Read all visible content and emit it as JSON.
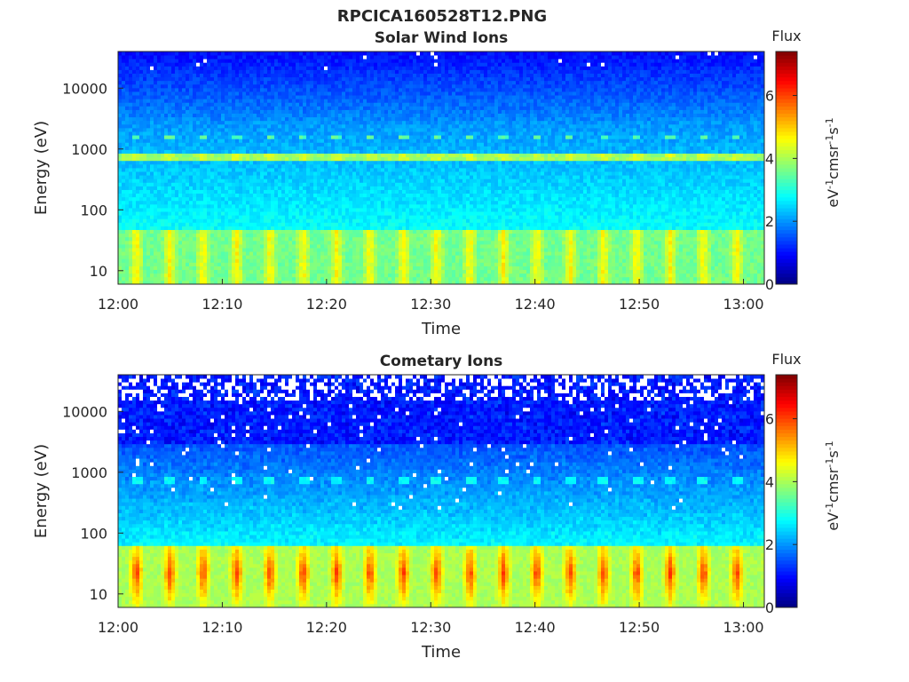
{
  "figure": {
    "title": "RPCICA160528T12.PNG"
  },
  "chart_data": [
    {
      "type": "heatmap",
      "title": "Solar Wind Ions",
      "xlabel": "Time",
      "ylabel": "Energy (eV)",
      "x_ticks": [
        "12:00",
        "12:10",
        "12:20",
        "12:30",
        "12:40",
        "12:50",
        "13:00"
      ],
      "x_range": [
        "12:00",
        "13:02"
      ],
      "y_scale": "log",
      "y_ticks": [
        10,
        100,
        1000,
        10000
      ],
      "y_range": [
        6,
        40000
      ],
      "colorbar": {
        "title": "Flux",
        "label": "eV-1cm-2sr-1s-1",
        "ticks": [
          0,
          2,
          4,
          6
        ],
        "range": [
          0,
          7.4
        ],
        "colormap": "jet"
      },
      "features": {
        "background_high_energy_flux": 1.0,
        "mid_energy_flux": 2.8,
        "band_750eV_flux": 3.9,
        "band_1600eV_flux": 3.4,
        "low_energy_flux": 3.6,
        "pulse_period_min": 3.2
      }
    },
    {
      "type": "heatmap",
      "title": "Cometary Ions",
      "xlabel": "Time",
      "ylabel": "Energy (eV)",
      "x_ticks": [
        "12:00",
        "12:10",
        "12:20",
        "12:30",
        "12:40",
        "12:50",
        "13:00"
      ],
      "x_range": [
        "12:00",
        "13:02"
      ],
      "y_scale": "log",
      "y_ticks": [
        10,
        100,
        1000,
        10000
      ],
      "y_range": [
        6,
        40000
      ],
      "colorbar": {
        "title": "Flux",
        "label": "eV-1cm-2sr-1s-1",
        "ticks": [
          0,
          2,
          4,
          6
        ],
        "range": [
          0,
          7.4
        ],
        "colormap": "jet"
      },
      "features": {
        "background_high_energy_flux": 0.8,
        "mid_energy_flux": 2.6,
        "band_750eV_flux": 2.8,
        "low_energy_peak_flux": 6.2,
        "low_energy_flux": 4.0,
        "pulse_period_min": 3.2,
        "no_data_color": "#ffffff"
      }
    }
  ]
}
